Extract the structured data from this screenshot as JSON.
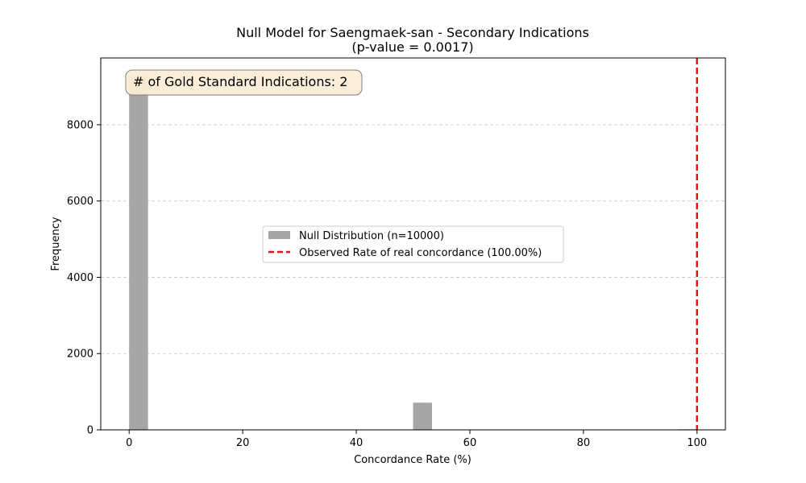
{
  "chart_data": {
    "type": "bar",
    "title": "Null Model for Saengmaek-san - Secondary Indications",
    "subtitle": "(p-value = 0.0017)",
    "xlabel": "Concordance Rate (%)",
    "ylabel": "Frequency",
    "xlim": [
      -5,
      105
    ],
    "ylim": [
      0,
      9750
    ],
    "xticks": [
      0,
      20,
      40,
      60,
      80,
      100
    ],
    "yticks": [
      0,
      2000,
      4000,
      6000,
      8000
    ],
    "grid": "y-dashed",
    "bin_width": 3.33,
    "bars": [
      {
        "x": 0,
        "value": 9270
      },
      {
        "x": 50,
        "value": 713
      },
      {
        "x": 96.67,
        "value": 17
      }
    ],
    "bar_color": "#a6a6a6",
    "observed_line": {
      "x": 100,
      "color": "#e8111a",
      "style": "dashed"
    },
    "legend": {
      "placement": "center",
      "entries": [
        {
          "label": "Null Distribution (n=10000)",
          "type": "patch",
          "color": "#a6a6a6"
        },
        {
          "label": "Observed Rate of real concordance (100.00%)",
          "type": "dashed-line",
          "color": "#e8111a"
        }
      ]
    },
    "annotation": {
      "text": "# of Gold Standard Indications: 2",
      "background": "#fbeed6",
      "placement": "top-left"
    }
  }
}
